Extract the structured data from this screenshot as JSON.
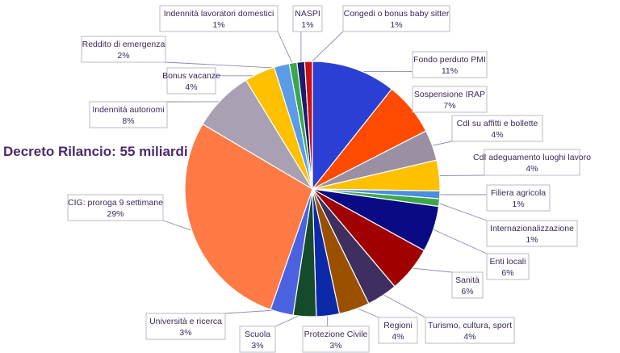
{
  "chart_data": {
    "type": "pie",
    "title": "Decreto Rilancio: 55 miliardi",
    "start_angle_deg": 0,
    "direction": "clockwise",
    "slices": [
      {
        "label": "Fondo perduto PMI",
        "value": 11,
        "display": "11%",
        "color": "#2b3fd4"
      },
      {
        "label": "Sospensione IRAP",
        "value": 7,
        "display": "7%",
        "color": "#ff4a00"
      },
      {
        "label": "CdI su affitti e bollette",
        "value": 4,
        "display": "4%",
        "color": "#9a8fa3"
      },
      {
        "label": "CdI adeguamento luoghi lavoro",
        "value": 4,
        "display": "4%",
        "color": "#ffc000"
      },
      {
        "label": "Filiera agricola",
        "value": 1,
        "display": "1%",
        "color": "#4a8ee0"
      },
      {
        "label": "Internazionalizzazione",
        "value": 1,
        "display": "1%",
        "color": "#3aa84a"
      },
      {
        "label": "Enti locali",
        "value": 6,
        "display": "6%",
        "color": "#0a0a85"
      },
      {
        "label": "Sanità",
        "value": 6,
        "display": "6%",
        "color": "#a00000"
      },
      {
        "label": "Turismo, cultura, sport",
        "value": 4,
        "display": "4%",
        "color": "#3f2e60"
      },
      {
        "label": "Regioni",
        "value": 4,
        "display": "4%",
        "color": "#9b5000"
      },
      {
        "label": "Protezione Civile",
        "value": 3,
        "display": "3%",
        "color": "#0c2aa8"
      },
      {
        "label": "Scuola",
        "value": 3,
        "display": "3%",
        "color": "#154a2a"
      },
      {
        "label": "Università e ricerca",
        "value": 3,
        "display": "3%",
        "color": "#4a62e0"
      },
      {
        "label": "CIG: proroga 9 settimane",
        "value": 29,
        "display": "29%",
        "color": "#ff7a45"
      },
      {
        "label": "Indennità autonomi",
        "value": 8,
        "display": "8%",
        "color": "#a9a0b3"
      },
      {
        "label": "Bonus vacanze",
        "value": 4,
        "display": "4%",
        "color": "#ffc000"
      },
      {
        "label": "Reddito di emergenza",
        "value": 2,
        "display": "2%",
        "color": "#5b9be8"
      },
      {
        "label": "Indennità lavoratori domestici",
        "value": 1,
        "display": "1%",
        "color": "#3aa84a"
      },
      {
        "label": "NASPI",
        "value": 1,
        "display": "1%",
        "color": "#1a1a70"
      },
      {
        "label": "Congedi o bonus baby sitter",
        "value": 1,
        "display": "1%",
        "color": "#cc1010"
      }
    ]
  }
}
